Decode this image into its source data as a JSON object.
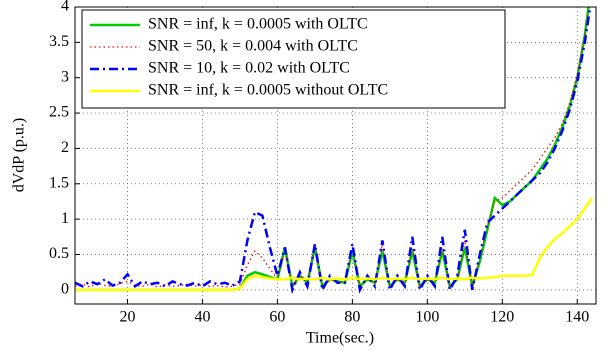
{
  "chart_data": {
    "type": "line",
    "xlabel": "Time(sec.)",
    "ylabel": "dVdP (p.u.)",
    "x": [
      6,
      8,
      10,
      12,
      14,
      16,
      18,
      20,
      22,
      24,
      26,
      28,
      30,
      32,
      34,
      36,
      38,
      40,
      42,
      44,
      46,
      48,
      50,
      52,
      54,
      56,
      58,
      60,
      62,
      64,
      66,
      68,
      70,
      72,
      74,
      76,
      78,
      80,
      82,
      84,
      86,
      88,
      90,
      92,
      94,
      96,
      98,
      100,
      102,
      104,
      106,
      108,
      110,
      112,
      114,
      116,
      118,
      120,
      122,
      124,
      126,
      128,
      130,
      132,
      134,
      136,
      138,
      140,
      142,
      144
    ],
    "xlim": [
      6,
      145
    ],
    "xticks": [
      20,
      40,
      60,
      80,
      100,
      120,
      140
    ],
    "ylim": [
      -0.2,
      4
    ],
    "yticks": [
      0,
      0.5,
      1,
      1.5,
      2,
      2.5,
      3,
      3.5,
      4
    ],
    "grid": true,
    "legend": "upper left",
    "series": [
      {
        "name": "SNR = inf, k = 0.0005 with OLTC",
        "color": "#00cc00",
        "linestyle": "solid",
        "values": [
          0,
          0,
          0,
          0,
          0,
          0,
          0,
          0,
          0,
          0,
          0,
          0,
          0,
          0,
          0,
          0,
          0,
          0,
          0,
          0,
          0,
          0,
          0.02,
          0.2,
          0.25,
          0.22,
          0.18,
          0.15,
          0.6,
          0.05,
          0.2,
          0.1,
          0.6,
          0.05,
          0.15,
          0.12,
          0.1,
          0.55,
          0.05,
          0.15,
          0.1,
          0.55,
          0.05,
          0.15,
          0.1,
          0.55,
          0.05,
          0.15,
          0.1,
          0.55,
          0.05,
          0.15,
          0.6,
          0.05,
          0.4,
          0.85,
          1.3,
          1.2,
          1.25,
          1.35,
          1.45,
          1.55,
          1.7,
          1.85,
          2.05,
          2.3,
          2.6,
          3.0,
          3.6,
          4.4
        ]
      },
      {
        "name": "SNR = 50, k = 0.004 with OLTC",
        "color": "#ff0000",
        "linestyle": "dotted",
        "values": [
          0.05,
          0.08,
          0.04,
          0.1,
          0.06,
          0.05,
          0.09,
          0.12,
          0.06,
          0.05,
          0.08,
          0.04,
          0.07,
          0.05,
          0.06,
          0.08,
          0.05,
          0.07,
          0.05,
          0.06,
          0.04,
          0.05,
          0.08,
          0.35,
          0.55,
          0.45,
          0.3,
          0.15,
          0.55,
          0.05,
          0.2,
          0.1,
          0.65,
          0.05,
          0.15,
          0.12,
          0.1,
          0.6,
          0.05,
          0.15,
          0.1,
          0.65,
          0.05,
          0.15,
          0.1,
          0.6,
          0.05,
          0.15,
          0.1,
          0.6,
          0.05,
          0.15,
          0.7,
          0.05,
          0.45,
          0.9,
          1.25,
          1.3,
          1.4,
          1.5,
          1.6,
          1.7,
          1.85,
          2.0,
          2.15,
          2.35,
          2.65,
          3.05,
          3.6,
          4.3
        ]
      },
      {
        "name": "SNR = 10, k = 0.02 with OLTC",
        "color": "#0000ff",
        "linestyle": "dashdot",
        "values": [
          0.1,
          0.05,
          0.12,
          0.08,
          0.15,
          0.06,
          0.1,
          0.22,
          0.05,
          0.12,
          0.08,
          0.1,
          0.05,
          0.12,
          0.08,
          0.06,
          0.1,
          0.05,
          0.12,
          0.08,
          0.1,
          0.06,
          0.12,
          0.7,
          1.1,
          1.05,
          0.6,
          0.2,
          0.6,
          0.0,
          0.25,
          0.05,
          0.65,
          0.0,
          0.2,
          0.1,
          0.1,
          0.65,
          0.0,
          0.2,
          0.05,
          0.7,
          0.0,
          0.2,
          0.05,
          0.75,
          0.0,
          0.2,
          0.05,
          0.75,
          0.0,
          0.2,
          0.85,
          0.0,
          0.5,
          0.95,
          1.05,
          1.15,
          1.25,
          1.35,
          1.45,
          1.55,
          1.65,
          1.8,
          2.0,
          2.25,
          2.55,
          2.95,
          3.5,
          4.2
        ]
      },
      {
        "name": "SNR = inf, k = 0.0005 without OLTC",
        "color": "#ffff00",
        "linestyle": "solid",
        "values": [
          0,
          0,
          0,
          0,
          0,
          0,
          0,
          0,
          0,
          0,
          0,
          0,
          0,
          0,
          0,
          0,
          0,
          0,
          0,
          0,
          0,
          0,
          0.02,
          0.15,
          0.2,
          0.18,
          0.16,
          0.15,
          0.15,
          0.17,
          0.15,
          0.16,
          0.15,
          0.17,
          0.15,
          0.16,
          0.15,
          0.17,
          0.15,
          0.16,
          0.15,
          0.17,
          0.15,
          0.16,
          0.15,
          0.17,
          0.15,
          0.16,
          0.15,
          0.17,
          0.15,
          0.16,
          0.15,
          0.17,
          0.16,
          0.17,
          0.18,
          0.2,
          0.2,
          0.2,
          0.2,
          0.21,
          0.45,
          0.6,
          0.72,
          0.8,
          0.9,
          1.0,
          1.15,
          1.3
        ]
      }
    ]
  }
}
